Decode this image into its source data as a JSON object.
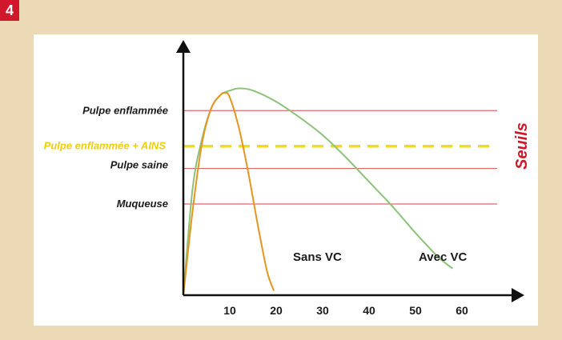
{
  "figure_number": "4",
  "chart_data": {
    "type": "line",
    "xlim": [
      0,
      70
    ],
    "ylim": [
      0,
      100
    ],
    "xticks": [
      "10",
      "20",
      "30",
      "40",
      "50",
      "60"
    ],
    "xtick_values": [
      10,
      20,
      30,
      40,
      50,
      60
    ],
    "thresholds": [
      {
        "label": "Pulpe enflammée",
        "y": 83,
        "style": "solid",
        "color": "#e06868"
      },
      {
        "label": "Pulpe enflammée + AINS",
        "y": 67,
        "style": "dashed",
        "color": "#f2dc1a"
      },
      {
        "label": "Pulpe saine",
        "y": 57,
        "style": "solid",
        "color": "#e06868"
      },
      {
        "label": "Muqueuse",
        "y": 41,
        "style": "solid",
        "color": "#e06868"
      }
    ],
    "side_label": "Seuils",
    "series": [
      {
        "name": "Sans VC",
        "color": "#e8951e",
        "x": [
          0,
          2,
          4,
          6,
          8,
          9,
          10,
          12,
          14,
          16,
          18,
          19.5
        ],
        "y": [
          0,
          38,
          68,
          84,
          90,
          91,
          89,
          75,
          55,
          32,
          11,
          2
        ]
      },
      {
        "name": "Avec VC",
        "color": "#8cc27a",
        "x": [
          0,
          2,
          4,
          6,
          8,
          10,
          12,
          15,
          20,
          25,
          30,
          35,
          40,
          45,
          50,
          55,
          58
        ],
        "y": [
          0,
          48,
          70,
          84,
          90,
          92,
          93,
          92,
          87,
          80,
          72,
          62,
          51,
          40,
          28,
          17,
          12
        ]
      }
    ]
  }
}
